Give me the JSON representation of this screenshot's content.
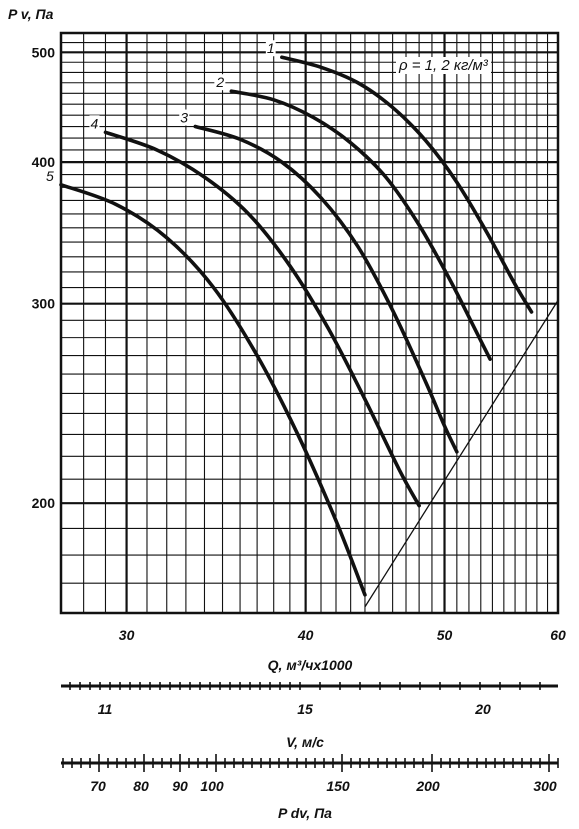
{
  "chart_data": {
    "type": "line",
    "ylabel": "P v, Па",
    "xlabel": "Q, м³/чх1000",
    "y_scale": "log",
    "x_scale": "log",
    "ylim": [
      160,
      520
    ],
    "xlim": [
      27,
      60
    ],
    "grid": true,
    "y_ticks": [
      200,
      300,
      400,
      500
    ],
    "y_tick_labels": [
      "200",
      "300",
      "400",
      "500"
    ],
    "x_ticks": [
      30,
      40,
      50,
      60
    ],
    "x_tick_labels": [
      "30",
      "40",
      "50",
      "60"
    ],
    "annotation": "ρ = 1, 2 кг/м³",
    "series": [
      {
        "name": "1",
        "x": [
          38.5,
          41,
          43.5,
          46,
          48.5,
          51,
          53.5,
          56,
          57.5
        ],
        "y": [
          495,
          485,
          470,
          447,
          418,
          384,
          347,
          312,
          295
        ]
      },
      {
        "name": "2",
        "x": [
          35.5,
          38,
          40.5,
          43,
          45.5,
          48,
          50.5,
          52.5,
          53.8
        ],
        "y": [
          462,
          454,
          438,
          416,
          388,
          352,
          314,
          285,
          268
        ]
      },
      {
        "name": "3",
        "x": [
          33.5,
          36,
          38.5,
          41,
          43.5,
          46,
          48.5,
          50,
          51
        ],
        "y": [
          430,
          419,
          400,
          372,
          337,
          296,
          256,
          234,
          222
        ]
      },
      {
        "name": "4",
        "x": [
          29,
          31.5,
          34,
          36.5,
          39,
          41.5,
          44,
          46.5,
          48
        ],
        "y": [
          425,
          410,
          388,
          360,
          324,
          285,
          247,
          214,
          199
        ]
      },
      {
        "name": "5",
        "x": [
          27,
          29.5,
          32,
          34.5,
          37,
          39.5,
          42,
          44
        ],
        "y": [
          382,
          367,
          343,
          310,
          270,
          230,
          193,
          166
        ]
      }
    ],
    "system_line": {
      "x": [
        44,
        60
      ],
      "y": [
        162,
        302
      ]
    },
    "secondary_axes": [
      {
        "label": "V, м/с",
        "tick_labels": [
          "11",
          "15",
          "20"
        ],
        "tick_values": [
          11,
          15,
          20
        ]
      },
      {
        "label": "P dv, Па",
        "tick_labels": [
          "70",
          "80",
          "90",
          "100",
          "150",
          "200",
          "300"
        ],
        "tick_values": [
          70,
          80,
          90,
          100,
          150,
          200,
          300
        ]
      }
    ]
  }
}
